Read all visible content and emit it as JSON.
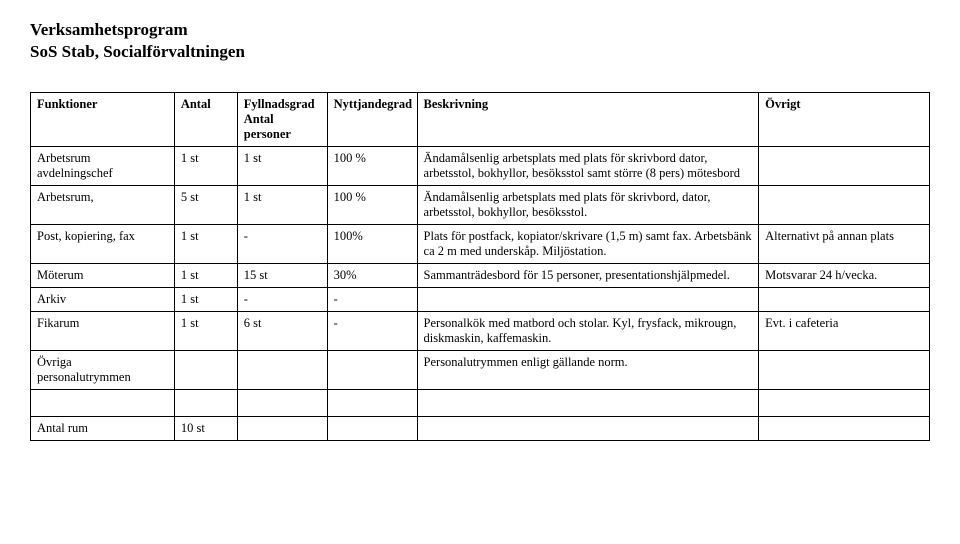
{
  "title_line1": "Verksamhetsprogram",
  "title_line2": "SoS Stab, Socialförvaltningen",
  "headers": {
    "c1": "Funktioner",
    "c2": "Antal",
    "c3_line1": "Fyllnadsgrad",
    "c3_line2": "Antal",
    "c3_line3": "personer",
    "c4": "Nyttjandegrad",
    "c5": "Beskrivning",
    "c6": "Övrigt"
  },
  "rows": [
    {
      "funktion": "Arbetsrum avdelningschef",
      "antal": "1 st",
      "fyllnad": "1 st",
      "nyttj": "100 %",
      "beskr": "Ändamålsenlig arbetsplats med plats för skrivbord dator, arbetsstol, bokhyllor, besöksstol samt större (8 pers) mötesbord",
      "ovrigt": ""
    },
    {
      "funktion": "Arbetsrum,",
      "antal": "5 st",
      "fyllnad": "1 st",
      "nyttj": "100 %",
      "beskr": "Ändamålsenlig arbetsplats med plats för skrivbord, dator, arbetsstol, bokhyllor, besöksstol.",
      "ovrigt": ""
    },
    {
      "funktion": "Post, kopiering, fax",
      "antal": "1 st",
      "fyllnad": "-",
      "nyttj": "100%",
      "beskr": "Plats för postfack, kopiator/skrivare (1,5 m) samt fax. Arbetsbänk ca 2 m med underskåp. Miljöstation.",
      "ovrigt": "Alternativt  på annan plats"
    },
    {
      "funktion": "Möterum",
      "antal": "1 st",
      "fyllnad": "15 st",
      "nyttj": "30%",
      "beskr": "Sammanträdesbord för 15  personer, presentationshjälpmedel.",
      "ovrigt": "Motsvarar 24 h/vecka."
    },
    {
      "funktion": "Arkiv",
      "antal": "1 st",
      "fyllnad": "-",
      "nyttj": "-",
      "beskr": "",
      "ovrigt": ""
    },
    {
      "funktion": "Fikarum",
      "antal": "1 st",
      "fyllnad": "6 st",
      "nyttj": "-",
      "beskr": "Personalkök med matbord och stolar. Kyl, frysfack, mikrougn, diskmaskin, kaffemaskin.",
      "ovrigt": "Evt. i cafeteria"
    },
    {
      "funktion": "Övriga personalutrymmen",
      "antal": "",
      "fyllnad": "",
      "nyttj": "",
      "beskr": "Personalutrymmen enligt gällande norm.",
      "ovrigt": ""
    }
  ],
  "footer": {
    "label": "Antal rum",
    "value": "10 st"
  }
}
